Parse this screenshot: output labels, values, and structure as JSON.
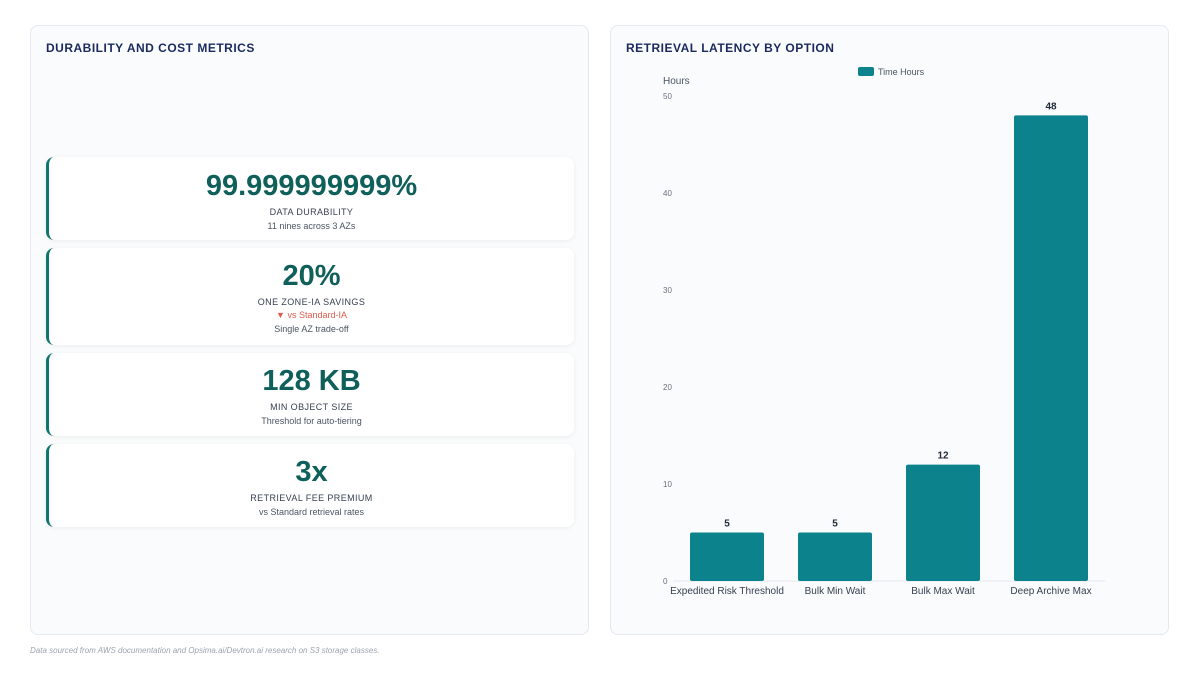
{
  "left_panel": {
    "title": "DURABILITY AND COST METRICS",
    "metrics": [
      {
        "value": "99.999999999%",
        "label": "DATA DURABILITY",
        "delta": "",
        "sub": "11 nines across 3 AZs"
      },
      {
        "value": "20%",
        "label": "ONE ZONE-IA SAVINGS",
        "delta": "▼ vs Standard-IA",
        "sub": "Single AZ trade-off"
      },
      {
        "value": "128 KB",
        "label": "MIN OBJECT SIZE",
        "delta": "",
        "sub": "Threshold for auto-tiering"
      },
      {
        "value": "3x",
        "label": "RETRIEVAL FEE PREMIUM",
        "delta": "",
        "sub": "vs Standard retrieval rates"
      }
    ]
  },
  "right_panel": {
    "title": "RETRIEVAL LATENCY BY OPTION"
  },
  "chart_data": {
    "type": "bar",
    "categories": [
      "Expedited Risk Threshold",
      "Bulk Min Wait",
      "Bulk Max Wait",
      "Deep Archive Max"
    ],
    "series": [
      {
        "name": "Time Hours",
        "values": [
          5,
          5,
          12,
          48
        ]
      }
    ],
    "ylabel": "Hours",
    "xlabel": "",
    "ylim": [
      0,
      50
    ],
    "yticks": [
      0,
      10,
      20,
      30,
      40,
      50
    ],
    "legend": "top-center",
    "grid": false,
    "color": "#0b828c"
  },
  "footer": {
    "note": "Data sourced from AWS documentation and Opsima.ai/Devtron.ai research on S3 storage classes."
  }
}
